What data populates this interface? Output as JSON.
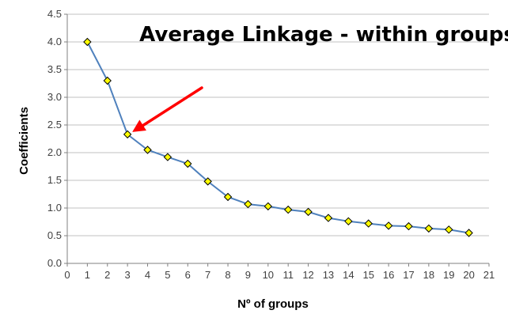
{
  "chart_data": {
    "type": "line",
    "title": "Average Linkage - within groups",
    "xlabel": "Nº of groups",
    "ylabel": "Coefficients",
    "xlim": [
      0,
      21
    ],
    "ylim": [
      0,
      4.5
    ],
    "xticks": [
      "0",
      "1",
      "2",
      "3",
      "4",
      "5",
      "6",
      "7",
      "8",
      "9",
      "10",
      "11",
      "12",
      "13",
      "14",
      "15",
      "16",
      "17",
      "18",
      "19",
      "20",
      "21"
    ],
    "yticks": [
      "0.0",
      "0.5",
      "1.0",
      "1.5",
      "2.0",
      "2.5",
      "3.0",
      "3.5",
      "4.0",
      "4.5"
    ],
    "grid": "horizontal",
    "series": [
      {
        "x": [
          1,
          2,
          3,
          4,
          5,
          6,
          7,
          8,
          9,
          10,
          11,
          12,
          13,
          14,
          15,
          16,
          17,
          18,
          19,
          20
        ],
        "values": [
          4.0,
          3.3,
          2.33,
          2.05,
          1.92,
          1.8,
          1.48,
          1.2,
          1.07,
          1.03,
          0.97,
          0.93,
          0.82,
          0.76,
          0.72,
          0.68,
          0.67,
          0.63,
          0.61,
          0.55
        ]
      }
    ],
    "annotations": [
      {
        "type": "arrow",
        "target_x": 3,
        "target_y": 2.33,
        "color": "#ff0000"
      }
    ],
    "colors": {
      "line": "#4f81bd",
      "marker_fill": "#ffff00",
      "marker_stroke": "#000000",
      "grid": "#c0c0c0",
      "axis": "#808080"
    }
  }
}
